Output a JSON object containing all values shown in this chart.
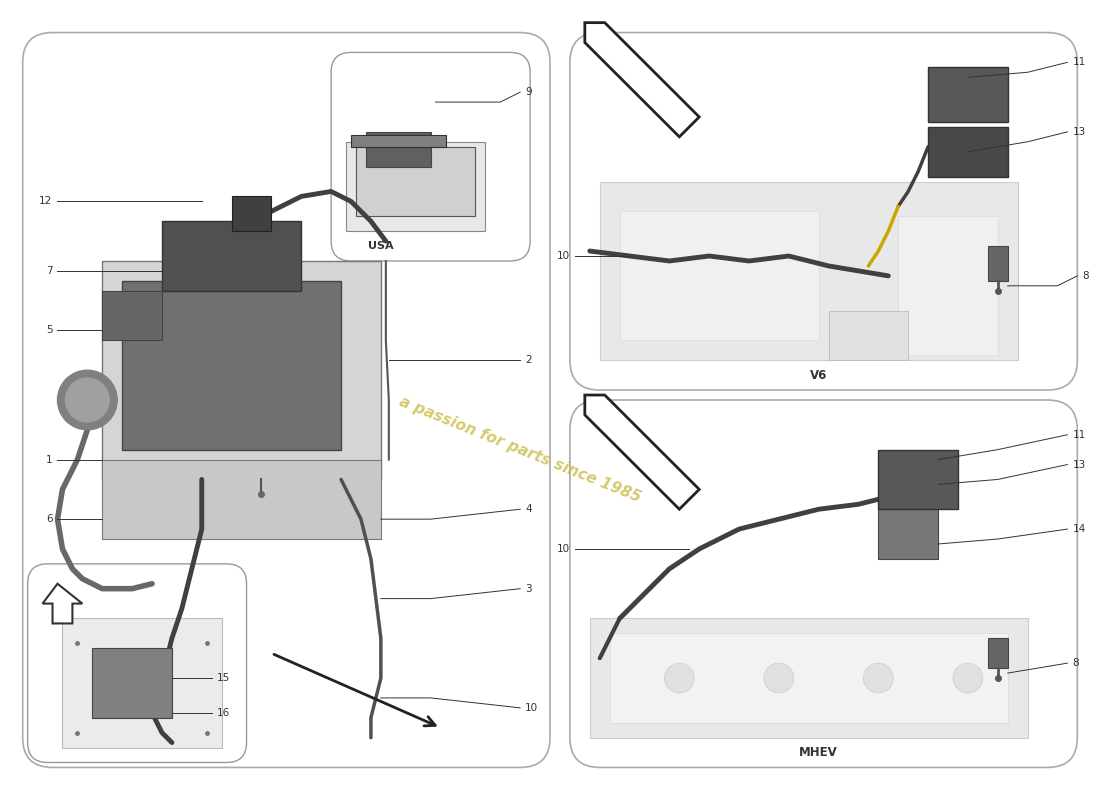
{
  "bg_color": "#ffffff",
  "panel_bg": "#ffffff",
  "panel_border": "#aaaaaa",
  "line_color": "#555555",
  "dark_gray": "#505050",
  "mid_gray": "#888888",
  "light_gray": "#cccccc",
  "text_color": "#333333",
  "watermark_color": "#c8b840",
  "watermark_text": "a passion for parts since 1985",
  "labels": {
    "usa": "USA",
    "v6": "V6",
    "mhev": "MHEV"
  }
}
